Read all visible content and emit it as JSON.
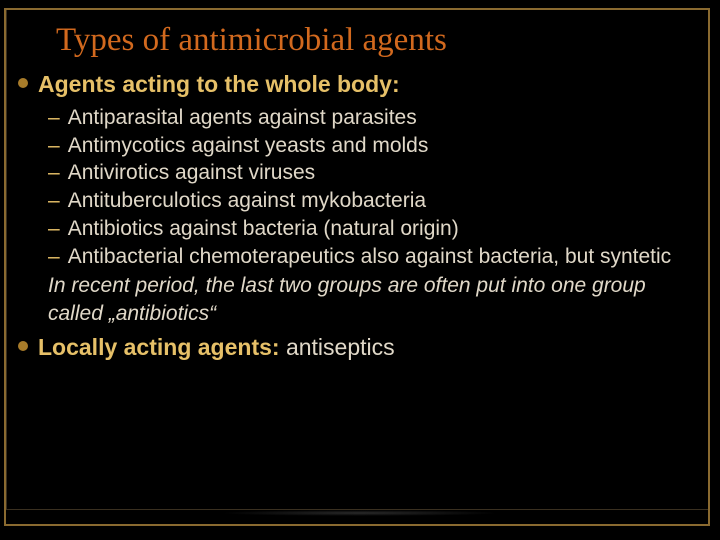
{
  "colors": {
    "background": "#000000",
    "title": "#d2691e",
    "bullet_heading": "#e6c068",
    "body_text": "#e0d8c8",
    "dash": "#e6c068",
    "frame_outer": "#3a3020",
    "frame_inner": "#8a6a30",
    "bullet_dot": "#a87c2a"
  },
  "title": "Types of antimicrobial agents",
  "bullet1": "Agents acting to the whole body:",
  "items": [
    {
      "term": "Antiparasital agents",
      "rest": " against parasites"
    },
    {
      "term": "Antimycotics",
      "rest": " against yeasts and molds"
    },
    {
      "term": "Antivirotics",
      "rest": " against viruses"
    },
    {
      "term": "Antituberculotics",
      "rest": " against mykobacteria"
    },
    {
      "term": "Antibiotics",
      "rest": " against bacteria (natural origin)"
    },
    {
      "term": "Antibacterial chemoterapeutics",
      "rest": " also against bacteria, but syntetic"
    }
  ],
  "note": "In recent period, the last two groups are often put into one group called „antibiotics“",
  "bullet2_label": "Locally acting agents: ",
  "bullet2_value": "antiseptics"
}
